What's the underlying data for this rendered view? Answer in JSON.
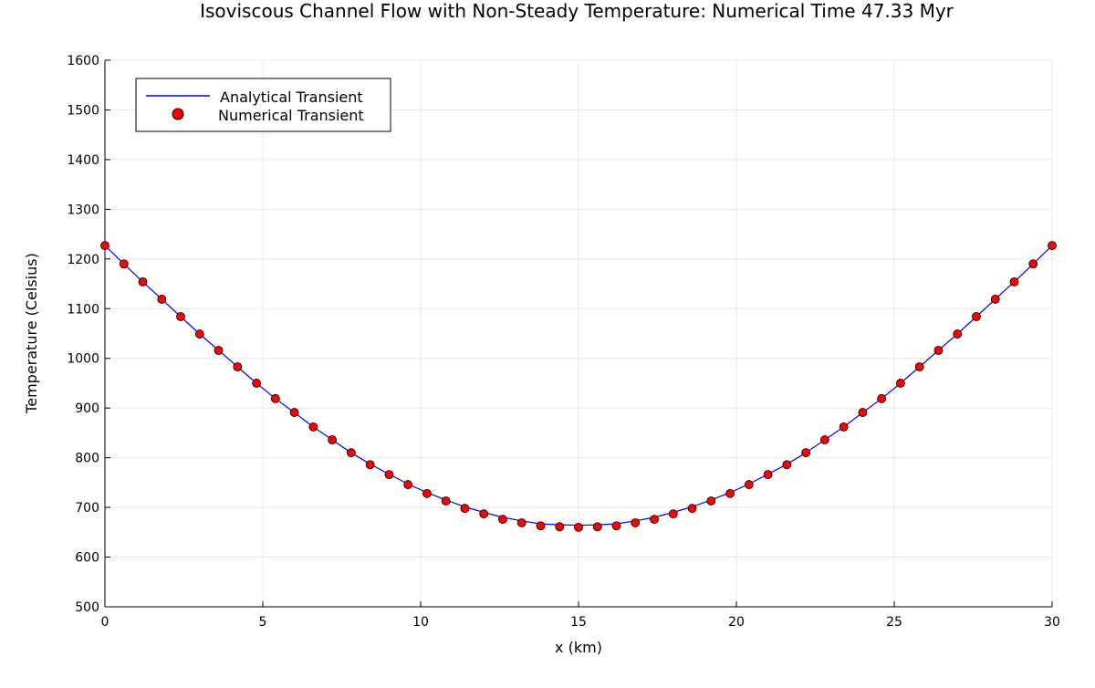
{
  "chart_data": {
    "type": "line",
    "title": "Isoviscous Channel Flow with Non-Steady Temperature: Numerical Time 47.33 Myr",
    "xlabel": "x (km)",
    "ylabel": "Temperature (Celsius)",
    "xlim": [
      0,
      30
    ],
    "ylim": [
      500,
      1600
    ],
    "xticks": [
      0,
      5,
      10,
      15,
      20,
      25,
      30
    ],
    "yticks": [
      500,
      600,
      700,
      800,
      900,
      1000,
      1100,
      1200,
      1300,
      1400,
      1500,
      1600
    ],
    "grid": true,
    "legend_position": "top-left",
    "x": [
      0,
      0.6,
      1.2,
      1.8,
      2.4,
      3.0,
      3.6,
      4.2,
      4.8,
      5.4,
      6.0,
      6.6,
      7.2,
      7.8,
      8.4,
      9.0,
      9.6,
      10.2,
      10.8,
      11.4,
      12.0,
      12.6,
      13.2,
      13.8,
      14.4,
      15.0,
      15.6,
      16.2,
      16.8,
      17.4,
      18.0,
      18.6,
      19.2,
      19.8,
      20.4,
      21.0,
      21.6,
      22.2,
      22.8,
      23.4,
      24.0,
      24.6,
      25.2,
      25.8,
      26.4,
      27.0,
      27.6,
      28.2,
      28.8,
      29.4,
      30.0
    ],
    "series": [
      {
        "name": "Analytical Transient",
        "style": "line",
        "color": "#0000ff",
        "values": [
          1227,
          1190,
          1154,
          1119,
          1084,
          1049,
          1016,
          983,
          950,
          919,
          891,
          862,
          836,
          810,
          787,
          767,
          747,
          730,
          715,
          701,
          690,
          680,
          673,
          667,
          665,
          664,
          665,
          667,
          673,
          680,
          690,
          701,
          715,
          730,
          747,
          767,
          787,
          810,
          836,
          862,
          891,
          919,
          950,
          983,
          1016,
          1049,
          1084,
          1119,
          1154,
          1190,
          1227
        ]
      },
      {
        "name": "Numerical Transient",
        "style": "scatter",
        "color": "#ff0000",
        "values": [
          1227,
          1190,
          1154,
          1119,
          1084,
          1049,
          1016,
          983,
          950,
          919,
          891,
          862,
          836,
          810,
          786,
          766,
          746,
          728,
          713,
          698,
          687,
          676,
          669,
          663,
          661,
          660,
          661,
          663,
          669,
          676,
          687,
          698,
          713,
          728,
          746,
          766,
          786,
          810,
          836,
          862,
          891,
          919,
          950,
          983,
          1016,
          1049,
          1084,
          1119,
          1154,
          1190,
          1227
        ]
      }
    ]
  }
}
